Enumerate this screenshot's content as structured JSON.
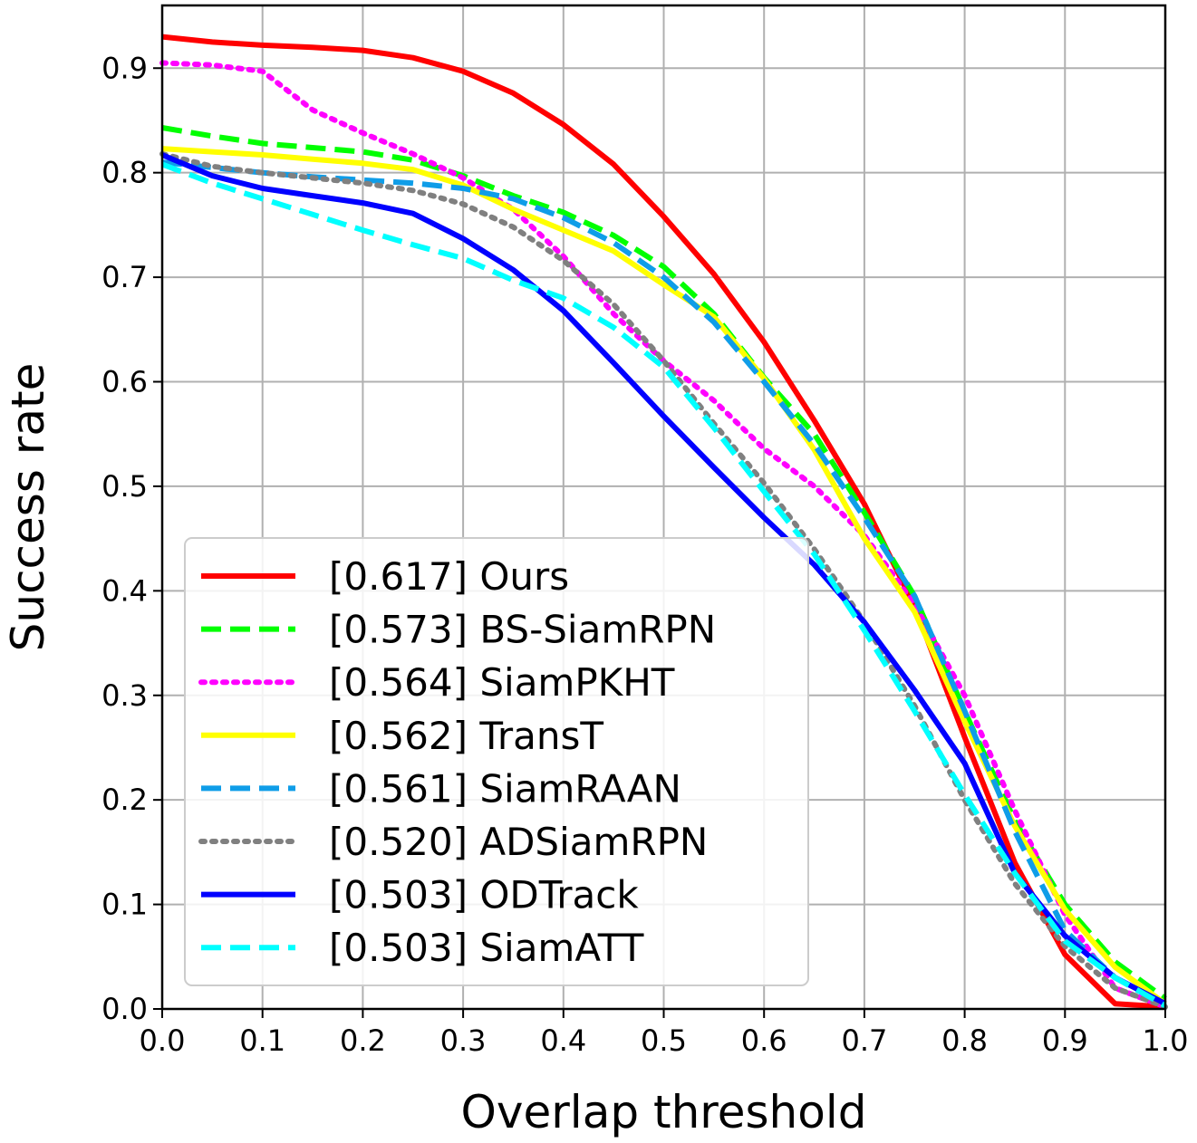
{
  "chart_data": {
    "type": "line",
    "title": "",
    "xlabel": "Overlap threshold",
    "ylabel": "Success rate",
    "xlim": [
      0.0,
      1.0
    ],
    "ylim": [
      0.0,
      0.96
    ],
    "xticks": [
      "0.0",
      "0.1",
      "0.2",
      "0.3",
      "0.4",
      "0.5",
      "0.6",
      "0.7",
      "0.8",
      "0.9",
      "1.0"
    ],
    "yticks": [
      "0.0",
      "0.1",
      "0.2",
      "0.3",
      "0.4",
      "0.5",
      "0.6",
      "0.7",
      "0.8",
      "0.9"
    ],
    "grid": true,
    "legend_position": "lower-left",
    "x": [
      0.0,
      0.05,
      0.1,
      0.15,
      0.2,
      0.25,
      0.3,
      0.35,
      0.4,
      0.45,
      0.5,
      0.55,
      0.6,
      0.65,
      0.7,
      0.75,
      0.8,
      0.85,
      0.9,
      0.95,
      1.0
    ],
    "series": [
      {
        "name": "[0.617] Ours",
        "color": "#ff0000",
        "dash": "solid",
        "values": [
          0.93,
          0.925,
          0.922,
          0.92,
          0.917,
          0.91,
          0.897,
          0.876,
          0.846,
          0.808,
          0.758,
          0.703,
          0.638,
          0.563,
          0.483,
          0.385,
          0.26,
          0.14,
          0.052,
          0.005,
          0.002
        ]
      },
      {
        "name": "[0.573] BS-SiamRPN",
        "color": "#00ff00",
        "dash": "dashed",
        "values": [
          0.843,
          0.835,
          0.828,
          0.824,
          0.82,
          0.812,
          0.797,
          0.778,
          0.762,
          0.74,
          0.71,
          0.665,
          0.604,
          0.55,
          0.475,
          0.395,
          0.285,
          0.18,
          0.1,
          0.045,
          0.01
        ]
      },
      {
        "name": "[0.564] SiamPKHT",
        "color": "#ff00ff",
        "dash": "dotted",
        "values": [
          0.905,
          0.903,
          0.897,
          0.86,
          0.838,
          0.818,
          0.795,
          0.765,
          0.72,
          0.665,
          0.62,
          0.582,
          0.536,
          0.5,
          0.453,
          0.387,
          0.3,
          0.19,
          0.09,
          0.02,
          0.002
        ]
      },
      {
        "name": "[0.562] TransT",
        "color": "#ffff00",
        "dash": "solid",
        "values": [
          0.823,
          0.82,
          0.817,
          0.813,
          0.809,
          0.803,
          0.788,
          0.765,
          0.745,
          0.725,
          0.693,
          0.662,
          0.603,
          0.535,
          0.45,
          0.38,
          0.275,
          0.175,
          0.095,
          0.04,
          0.005
        ]
      },
      {
        "name": "[0.561] SiamRAAN",
        "color": "#0f9de8",
        "dash": "dashed",
        "values": [
          0.81,
          0.805,
          0.8,
          0.796,
          0.793,
          0.79,
          0.785,
          0.775,
          0.757,
          0.733,
          0.7,
          0.657,
          0.6,
          0.54,
          0.47,
          0.395,
          0.285,
          0.17,
          0.075,
          0.03,
          0.003
        ]
      },
      {
        "name": "[0.520] ADSiamRPN",
        "color": "#808080",
        "dash": "dotted",
        "values": [
          0.818,
          0.806,
          0.8,
          0.795,
          0.79,
          0.783,
          0.77,
          0.748,
          0.716,
          0.674,
          0.62,
          0.56,
          0.503,
          0.44,
          0.37,
          0.29,
          0.2,
          0.12,
          0.06,
          0.02,
          0.002
        ]
      },
      {
        "name": "[0.503] ODTrack",
        "color": "#0000ff",
        "dash": "solid",
        "values": [
          0.817,
          0.797,
          0.785,
          0.778,
          0.771,
          0.761,
          0.737,
          0.707,
          0.668,
          0.618,
          0.567,
          0.518,
          0.47,
          0.425,
          0.37,
          0.305,
          0.235,
          0.13,
          0.07,
          0.03,
          0.005
        ]
      },
      {
        "name": "[0.503] SiamATT",
        "color": "#00ffff",
        "dash": "dashed",
        "values": [
          0.808,
          0.79,
          0.775,
          0.76,
          0.745,
          0.731,
          0.718,
          0.697,
          0.68,
          0.652,
          0.614,
          0.556,
          0.495,
          0.435,
          0.362,
          0.285,
          0.205,
          0.13,
          0.065,
          0.03,
          0.003
        ]
      }
    ]
  }
}
